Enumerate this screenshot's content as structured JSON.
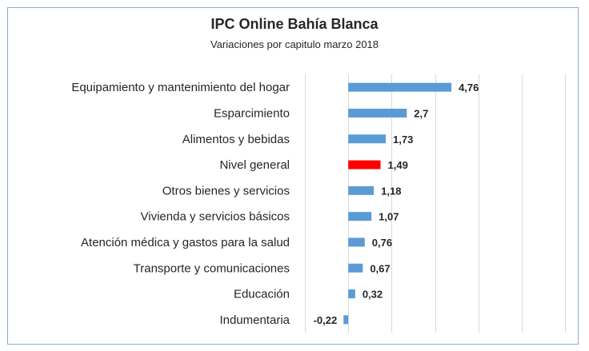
{
  "chart_data": {
    "type": "bar",
    "orientation": "horizontal",
    "title": "IPC Online Bahía Blanca",
    "subtitle": "Variaciones por capitulo marzo 2018",
    "categories": [
      "Equipamiento y mantenimiento del hogar",
      "Esparcimiento",
      "Alimentos y bebidas",
      "Nivel general",
      "Otros bienes y servicios",
      "Vivienda y servicios básicos",
      "Atención médica y gastos para la salud",
      "Transporte y comunicaciones",
      "Educación",
      "Indumentaria"
    ],
    "values": [
      4.76,
      2.7,
      1.73,
      1.49,
      1.18,
      1.07,
      0.76,
      0.67,
      0.32,
      -0.22
    ],
    "value_labels": [
      "4,76",
      "2,7",
      "1,73",
      "1,49",
      "1,18",
      "1,07",
      "0,76",
      "0,67",
      "0,32",
      "-0,22"
    ],
    "highlight_category": "Nivel general",
    "xlim": [
      -2,
      10
    ],
    "grid": true,
    "colors": {
      "bar": "#5b9bd5",
      "highlight": "#ff0000",
      "grid": "#d9d9d9",
      "text": "#262626",
      "border": "#8ea9c8"
    }
  }
}
